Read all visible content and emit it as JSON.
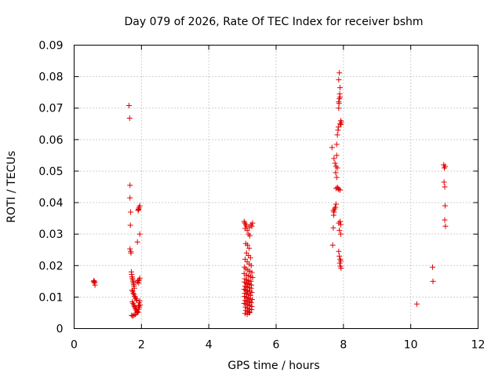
{
  "chart_data": {
    "type": "scatter",
    "title": "Day 079 of 2026, Rate Of TEC Index for receiver bshm",
    "xlabel": "GPS time / hours",
    "ylabel": "ROTI / TECUs",
    "xlim": [
      0,
      12
    ],
    "ylim": [
      0,
      0.09
    ],
    "xticks": [
      0,
      2,
      4,
      6,
      8,
      10,
      12
    ],
    "xtick_labels": [
      "0",
      "2",
      "4",
      "6",
      "8",
      "10",
      "12"
    ],
    "yticks": [
      0,
      0.01,
      0.02,
      0.03,
      0.04,
      0.05,
      0.06,
      0.07,
      0.08,
      0.09
    ],
    "ytick_labels": [
      "0",
      "0.01",
      "0.02",
      "0.03",
      "0.04",
      "0.05",
      "0.06",
      "0.07",
      "0.08",
      "0.09"
    ],
    "grid": true,
    "marker": "+",
    "color": "#e00000",
    "series": [
      {
        "name": "ROTI",
        "points": [
          [
            0.58,
            0.015
          ],
          [
            0.6,
            0.0145
          ],
          [
            0.62,
            0.0138
          ],
          [
            0.59,
            0.0152
          ],
          [
            0.61,
            0.0148
          ],
          [
            1.63,
            0.0708
          ],
          [
            1.65,
            0.0668
          ],
          [
            1.66,
            0.0455
          ],
          [
            1.66,
            0.0415
          ],
          [
            1.68,
            0.037
          ],
          [
            1.67,
            0.0328
          ],
          [
            1.66,
            0.0253
          ],
          [
            1.68,
            0.0245
          ],
          [
            1.69,
            0.024
          ],
          [
            1.7,
            0.018
          ],
          [
            1.71,
            0.0172
          ],
          [
            1.72,
            0.0165
          ],
          [
            1.73,
            0.016
          ],
          [
            1.74,
            0.0155
          ],
          [
            1.75,
            0.015
          ],
          [
            1.76,
            0.0145
          ],
          [
            1.77,
            0.014
          ],
          [
            1.78,
            0.0135
          ],
          [
            1.79,
            0.0128
          ],
          [
            1.72,
            0.0122
          ],
          [
            1.74,
            0.0118
          ],
          [
            1.76,
            0.0112
          ],
          [
            1.78,
            0.0108
          ],
          [
            1.8,
            0.0102
          ],
          [
            1.82,
            0.0098
          ],
          [
            1.84,
            0.0094
          ],
          [
            1.86,
            0.009
          ],
          [
            1.73,
            0.0085
          ],
          [
            1.75,
            0.008
          ],
          [
            1.77,
            0.0075
          ],
          [
            1.79,
            0.007
          ],
          [
            1.81,
            0.0066
          ],
          [
            1.83,
            0.0062
          ],
          [
            1.85,
            0.0058
          ],
          [
            1.87,
            0.0055
          ],
          [
            1.89,
            0.0052
          ],
          [
            1.71,
            0.0042
          ],
          [
            1.74,
            0.004
          ],
          [
            1.78,
            0.0042
          ],
          [
            1.82,
            0.0045
          ],
          [
            1.86,
            0.005
          ],
          [
            1.9,
            0.0052
          ],
          [
            1.92,
            0.0062
          ],
          [
            1.94,
            0.0068
          ],
          [
            1.96,
            0.0075
          ],
          [
            1.93,
            0.0082
          ],
          [
            1.95,
            0.0088
          ],
          [
            1.91,
            0.0072
          ],
          [
            1.88,
            0.0148
          ],
          [
            1.9,
            0.0152
          ],
          [
            1.93,
            0.0155
          ],
          [
            1.95,
            0.016
          ],
          [
            1.92,
            0.0145
          ],
          [
            1.88,
            0.0275
          ],
          [
            1.95,
            0.03
          ],
          [
            1.9,
            0.0375
          ],
          [
            1.92,
            0.038
          ],
          [
            1.93,
            0.0385
          ],
          [
            1.95,
            0.039
          ],
          [
            1.91,
            0.0378
          ],
          [
            5.05,
            0.034
          ],
          [
            5.07,
            0.0335
          ],
          [
            5.1,
            0.033
          ],
          [
            5.12,
            0.0325
          ],
          [
            5.08,
            0.0318
          ],
          [
            5.14,
            0.0312
          ],
          [
            5.2,
            0.032
          ],
          [
            5.25,
            0.033
          ],
          [
            5.28,
            0.0325
          ],
          [
            5.3,
            0.0335
          ],
          [
            5.18,
            0.03
          ],
          [
            5.22,
            0.0295
          ],
          [
            5.1,
            0.027
          ],
          [
            5.15,
            0.0265
          ],
          [
            5.2,
            0.0255
          ],
          [
            5.12,
            0.024
          ],
          [
            5.18,
            0.0232
          ],
          [
            5.24,
            0.0225
          ],
          [
            5.08,
            0.022
          ],
          [
            5.14,
            0.0212
          ],
          [
            5.2,
            0.0205
          ],
          [
            5.26,
            0.02
          ],
          [
            5.06,
            0.0195
          ],
          [
            5.1,
            0.019
          ],
          [
            5.16,
            0.0186
          ],
          [
            5.22,
            0.0182
          ],
          [
            5.28,
            0.0178
          ],
          [
            5.05,
            0.0175
          ],
          [
            5.12,
            0.017
          ],
          [
            5.18,
            0.0168
          ],
          [
            5.24,
            0.0165
          ],
          [
            5.3,
            0.0162
          ],
          [
            5.07,
            0.0158
          ],
          [
            5.13,
            0.0155
          ],
          [
            5.19,
            0.0152
          ],
          [
            5.25,
            0.015
          ],
          [
            5.06,
            0.0148
          ],
          [
            5.11,
            0.0145
          ],
          [
            5.16,
            0.0142
          ],
          [
            5.21,
            0.014
          ],
          [
            5.27,
            0.0138
          ],
          [
            5.08,
            0.0135
          ],
          [
            5.14,
            0.0132
          ],
          [
            5.2,
            0.013
          ],
          [
            5.26,
            0.0128
          ],
          [
            5.05,
            0.0125
          ],
          [
            5.1,
            0.0122
          ],
          [
            5.15,
            0.012
          ],
          [
            5.22,
            0.0118
          ],
          [
            5.28,
            0.0115
          ],
          [
            5.07,
            0.0112
          ],
          [
            5.13,
            0.011
          ],
          [
            5.18,
            0.0108
          ],
          [
            5.24,
            0.0105
          ],
          [
            5.06,
            0.0102
          ],
          [
            5.12,
            0.01
          ],
          [
            5.17,
            0.0098
          ],
          [
            5.23,
            0.0095
          ],
          [
            5.29,
            0.0092
          ],
          [
            5.08,
            0.009
          ],
          [
            5.14,
            0.0088
          ],
          [
            5.2,
            0.0085
          ],
          [
            5.26,
            0.0082
          ],
          [
            5.05,
            0.008
          ],
          [
            5.11,
            0.0078
          ],
          [
            5.16,
            0.0075
          ],
          [
            5.22,
            0.0072
          ],
          [
            5.28,
            0.007
          ],
          [
            5.09,
            0.0068
          ],
          [
            5.15,
            0.0065
          ],
          [
            5.21,
            0.0062
          ],
          [
            5.27,
            0.006
          ],
          [
            5.1,
            0.0058
          ],
          [
            5.16,
            0.0055
          ],
          [
            5.22,
            0.0052
          ],
          [
            5.08,
            0.0048
          ],
          [
            5.14,
            0.0045
          ],
          [
            5.2,
            0.005
          ],
          [
            7.68,
            0.0265
          ],
          [
            7.7,
            0.032
          ],
          [
            7.72,
            0.037
          ],
          [
            7.74,
            0.038
          ],
          [
            7.7,
            0.0375
          ],
          [
            7.76,
            0.0385
          ],
          [
            7.78,
            0.0395
          ],
          [
            7.71,
            0.036
          ],
          [
            7.66,
            0.0575
          ],
          [
            7.72,
            0.054
          ],
          [
            7.75,
            0.0525
          ],
          [
            7.78,
            0.0515
          ],
          [
            7.8,
            0.055
          ],
          [
            7.82,
            0.051
          ],
          [
            7.77,
            0.0495
          ],
          [
            7.8,
            0.048
          ],
          [
            7.78,
            0.0445
          ],
          [
            7.82,
            0.0448
          ],
          [
            7.86,
            0.0442
          ],
          [
            7.9,
            0.044
          ],
          [
            7.84,
            0.0445
          ],
          [
            7.8,
            0.0585
          ],
          [
            7.82,
            0.0615
          ],
          [
            7.84,
            0.063
          ],
          [
            7.85,
            0.064
          ],
          [
            7.86,
            0.07
          ],
          [
            7.87,
            0.0715
          ],
          [
            7.88,
            0.073
          ],
          [
            7.89,
            0.0745
          ],
          [
            7.86,
            0.072
          ],
          [
            7.9,
            0.0735
          ],
          [
            7.86,
            0.079
          ],
          [
            7.88,
            0.0812
          ],
          [
            7.9,
            0.0765
          ],
          [
            7.92,
            0.066
          ],
          [
            7.94,
            0.0655
          ],
          [
            7.93,
            0.0648
          ],
          [
            7.9,
            0.065
          ],
          [
            7.86,
            0.0335
          ],
          [
            7.9,
            0.034
          ],
          [
            7.92,
            0.033
          ],
          [
            7.88,
            0.0312
          ],
          [
            7.92,
            0.03
          ],
          [
            7.86,
            0.0245
          ],
          [
            7.88,
            0.023
          ],
          [
            7.9,
            0.022
          ],
          [
            7.92,
            0.0215
          ],
          [
            7.89,
            0.0208
          ],
          [
            7.91,
            0.0198
          ],
          [
            7.93,
            0.0192
          ],
          [
            10.18,
            0.0078
          ],
          [
            10.65,
            0.0195
          ],
          [
            10.66,
            0.015
          ],
          [
            10.98,
            0.052
          ],
          [
            11.0,
            0.051
          ],
          [
            11.02,
            0.0515
          ],
          [
            10.99,
            0.0465
          ],
          [
            11.01,
            0.045
          ],
          [
            11.02,
            0.039
          ],
          [
            11.01,
            0.0345
          ],
          [
            11.03,
            0.0325
          ]
        ]
      }
    ]
  }
}
